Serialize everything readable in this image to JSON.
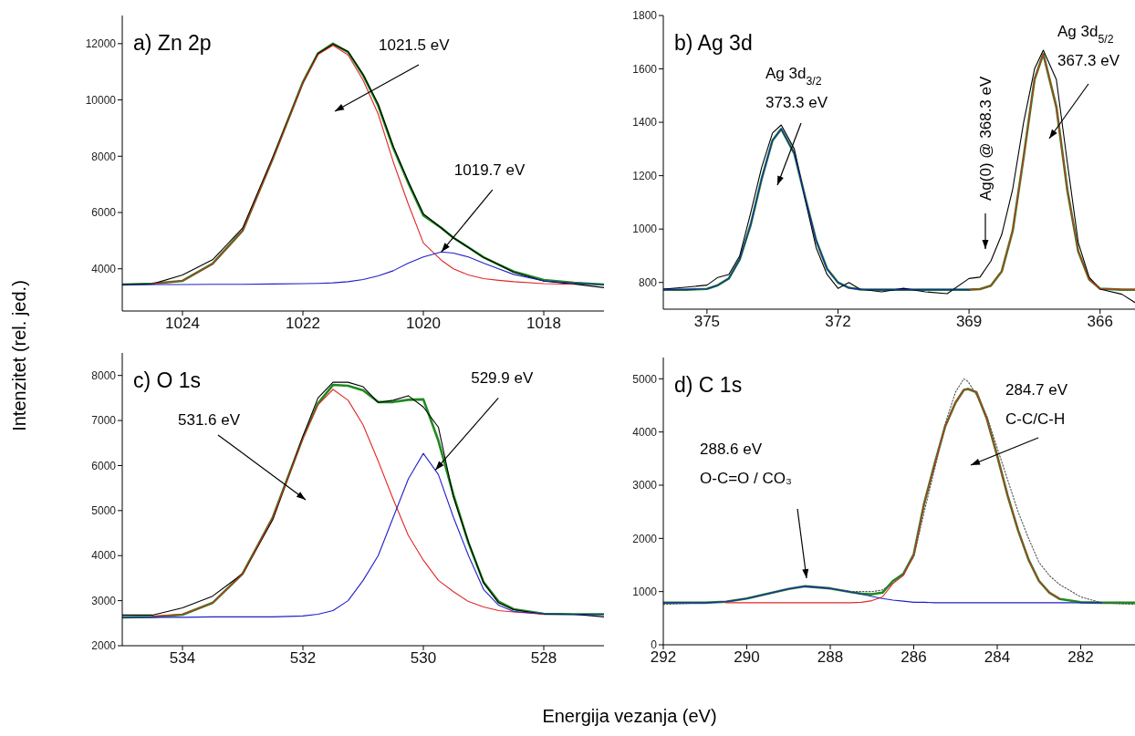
{
  "chart_data": [
    {
      "type": "line",
      "title": "a) Zn 2p",
      "ylabel": "Intenzitet (rel. jed.)",
      "x": [
        1025,
        1024.5,
        1024,
        1023.5,
        1023,
        1022.5,
        1022,
        1021.75,
        1021.5,
        1021.25,
        1021,
        1020.75,
        1020.5,
        1020.25,
        1020,
        1019.7,
        1019.5,
        1019.25,
        1019,
        1018.75,
        1018.5,
        1018,
        1017.5,
        1017
      ],
      "series": [
        {
          "color": "#000000",
          "values": [
            3440,
            3460,
            3780,
            4320,
            5450,
            7950,
            10600,
            11650,
            11980,
            11720,
            10900,
            9850,
            8350,
            7100,
            5950,
            5450,
            5100,
            4750,
            4400,
            4150,
            3880,
            3560,
            3460,
            3330
          ]
        },
        {
          "color": "#e02828",
          "values": [
            null,
            3470,
            3570,
            4170,
            5350,
            7900,
            10600,
            11610,
            11940,
            11600,
            10700,
            9500,
            7800,
            6300,
            4920,
            4300,
            4000,
            3780,
            3650,
            3590,
            3540,
            3470,
            3450,
            null
          ]
        },
        {
          "color": "#2020c8",
          "values": [
            3440,
            3440,
            3440,
            3450,
            3450,
            3460,
            3470,
            3480,
            3500,
            3540,
            3620,
            3750,
            3930,
            4200,
            4420,
            4600,
            4560,
            4420,
            4200,
            4000,
            3800,
            3570,
            3490,
            3440
          ]
        },
        {
          "color": "#1f8a1f",
          "values": [
            3440,
            3470,
            3570,
            4180,
            5360,
            7920,
            10630,
            11650,
            12000,
            11700,
            10880,
            9800,
            8300,
            7050,
            5900,
            5450,
            5100,
            4760,
            4410,
            4150,
            3900,
            3600,
            3500,
            3440
          ]
        }
      ],
      "xlim": [
        1025,
        1017
      ],
      "xticks": [
        1024,
        1022,
        1020,
        1018
      ],
      "ylim": [
        2500,
        13000
      ],
      "yticks": [
        4000,
        6000,
        8000,
        10000,
        12000
      ],
      "annotations": [
        "1021.5 eV",
        {
          "text": "1019.7 eV",
          "x": 1019.7,
          "y": 4600
        }
      ]
    },
    {
      "type": "line",
      "title": "b) Ag 3d",
      "x": [
        376,
        375.5,
        375,
        374.75,
        374.5,
        374.25,
        374,
        373.75,
        373.5,
        373.3,
        373,
        372.75,
        372.5,
        372.25,
        372,
        371.75,
        371.5,
        371,
        370.5,
        370,
        369.5,
        369,
        368.75,
        368.5,
        368.25,
        368,
        367.75,
        367.5,
        367.3,
        367,
        366.75,
        366.5,
        366.25,
        366,
        365.5,
        365.2
      ],
      "series": [
        {
          "color": "#000000",
          "values": [
            775,
            782,
            790,
            819,
            830,
            900,
            1060,
            1230,
            1360,
            1390,
            1300,
            1110,
            930,
            830,
            778,
            800,
            775,
            765,
            778,
            765,
            758,
            815,
            820,
            880,
            980,
            1150,
            1400,
            1600,
            1670,
            1560,
            1250,
            950,
            820,
            775,
            756,
            725
          ]
        },
        {
          "color": "#e02828",
          "values": [
            null,
            null,
            null,
            null,
            null,
            null,
            null,
            null,
            null,
            null,
            null,
            null,
            null,
            null,
            null,
            null,
            null,
            null,
            null,
            null,
            null,
            773,
            775,
            788,
            842,
            994,
            1270,
            1561,
            1656,
            1457,
            1147,
            917,
            812,
            777,
            773,
            773
          ]
        },
        {
          "color": "#2020c8",
          "values": [
            773,
            773,
            776,
            790,
            815,
            887,
            1016,
            1187,
            1332,
            1375,
            1283,
            1117,
            957,
            851,
            800,
            780,
            774,
            773,
            773,
            773,
            773,
            773,
            null,
            null,
            null,
            null,
            null,
            null,
            null,
            null,
            null,
            null,
            null,
            null,
            null,
            null
          ]
        },
        {
          "color": "#1f8a1f",
          "values": [
            773,
            773,
            776,
            790,
            815,
            887,
            1016,
            1187,
            1332,
            1375,
            1283,
            1117,
            957,
            851,
            800,
            780,
            774,
            773,
            773,
            773,
            773,
            773,
            775,
            788,
            842,
            994,
            1270,
            1561,
            1656,
            1457,
            1147,
            917,
            812,
            777,
            773,
            773
          ]
        }
      ],
      "xlim": [
        376,
        365.2
      ],
      "xticks": [
        375,
        372,
        369,
        366
      ],
      "ylim": [
        700,
        1800
      ],
      "yticks": [
        800,
        1000,
        1200,
        1400,
        1600,
        1800
      ],
      "annotations": [
        "Ag 3d$_{3/2}$\n373.3 eV",
        "Ag(0) @ 368.3 eV",
        "Ag 3d$_{5/2}$\n367.3 eV"
      ]
    },
    {
      "type": "line",
      "title": "c) O 1s",
      "xlabel": "Energija vezanja (eV)",
      "x": [
        535,
        534.5,
        534,
        533.5,
        533,
        532.5,
        532,
        531.75,
        531.5,
        531.25,
        531,
        530.75,
        530.5,
        530.25,
        530,
        529.75,
        529.5,
        529.25,
        529,
        528.75,
        528.5,
        528,
        527.5,
        527
      ],
      "series": [
        {
          "color": "#000000",
          "values": [
            2680,
            2680,
            2840,
            3100,
            3600,
            4800,
            6650,
            7500,
            7850,
            7850,
            7750,
            7400,
            7450,
            7550,
            7300,
            6850,
            5300,
            4300,
            3400,
            2950,
            2800,
            2700,
            2700,
            2640
          ]
        },
        {
          "color": "#e02828",
          "values": [
            null,
            2650,
            2700,
            2950,
            3600,
            4850,
            6600,
            7350,
            7690,
            7450,
            6900,
            6100,
            5250,
            4450,
            3900,
            3450,
            3200,
            2980,
            2860,
            2780,
            2750,
            2700,
            null,
            null
          ]
        },
        {
          "color": "#2020c8",
          "values": [
            2630,
            2630,
            2630,
            2640,
            2640,
            2640,
            2660,
            2700,
            2780,
            3000,
            3450,
            4000,
            4850,
            5700,
            6270,
            5800,
            4850,
            4000,
            3250,
            2900,
            2760,
            2710,
            2700,
            2700
          ]
        },
        {
          "color": "#1f8a1f",
          "values": [
            2630,
            2640,
            2690,
            2950,
            3600,
            4850,
            6620,
            7380,
            7790,
            7770,
            7670,
            7410,
            7410,
            7460,
            7470,
            6550,
            5350,
            4280,
            3410,
            2980,
            2810,
            2710,
            2700,
            2700
          ]
        }
      ],
      "xlim": [
        535,
        527
      ],
      "xticks": [
        534,
        532,
        530,
        528
      ],
      "ylim": [
        2000,
        8500
      ],
      "yticks": [
        2000,
        3000,
        4000,
        5000,
        6000,
        7000,
        8000
      ],
      "annotations": [
        "531.6 eV",
        {
          "text": "529.9 eV",
          "x": 529.8,
          "y": 5900
        }
      ]
    },
    {
      "type": "line",
      "title": "d) C 1s",
      "x": [
        292,
        291,
        290.5,
        290,
        289.5,
        289,
        288.6,
        288,
        287.5,
        287.25,
        287,
        286.75,
        286.5,
        286.25,
        286,
        285.75,
        285.5,
        285.25,
        285,
        284.8,
        284.7,
        284.5,
        284.25,
        284,
        283.75,
        283.5,
        283.25,
        283,
        282.75,
        282.5,
        282,
        281.5,
        281,
        280.7
      ],
      "series": [
        {
          "color": "#555555",
          "line_style": "dotted",
          "values": [
            760,
            790,
            810,
            870,
            960,
            1050,
            1100,
            1060,
            1000,
            1000,
            1000,
            1030,
            1150,
            1350,
            1650,
            2500,
            3300,
            4150,
            4750,
            5000,
            4950,
            4700,
            4300,
            3700,
            3100,
            2500,
            2000,
            1550,
            1300,
            1130,
            900,
            790,
            770,
            760
          ]
        },
        {
          "color": "#e02828",
          "values": [
            null,
            null,
            790,
            790,
            790,
            790,
            790,
            790,
            790,
            800,
            830,
            900,
            1150,
            1300,
            1690,
            2650,
            3400,
            4100,
            4550,
            4790,
            4810,
            4750,
            4250,
            3550,
            2800,
            2150,
            1600,
            1200,
            980,
            860,
            null,
            null,
            null,
            null
          ]
        },
        {
          "color": "#2020c8",
          "values": [
            790,
            790,
            810,
            870,
            960,
            1050,
            1100,
            1060,
            990,
            950,
            910,
            870,
            840,
            820,
            800,
            800,
            790,
            790,
            790,
            790,
            790,
            790,
            790,
            790,
            790,
            790,
            790,
            790,
            790,
            790,
            790,
            790,
            null,
            null
          ]
        },
        {
          "color": "#1f8a1f",
          "values": [
            790,
            790,
            810,
            870,
            960,
            1050,
            1100,
            1060,
            990,
            960,
            950,
            980,
            1200,
            1330,
            1700,
            2660,
            3400,
            4100,
            4550,
            4790,
            4810,
            4750,
            4250,
            3550,
            2800,
            2150,
            1600,
            1200,
            980,
            860,
            800,
            790,
            790,
            790
          ]
        }
      ],
      "xlim": [
        292,
        280.7
      ],
      "xticks": [
        292,
        290,
        288,
        286,
        284,
        282
      ],
      "ylim": [
        0,
        5400
      ],
      "yticks": [
        0,
        1000,
        2000,
        3000,
        4000,
        5000
      ],
      "annotations": [
        "288.6 eV\nO-C=O / CO₃",
        "284.7 eV\nC-C/C-H"
      ]
    }
  ]
}
